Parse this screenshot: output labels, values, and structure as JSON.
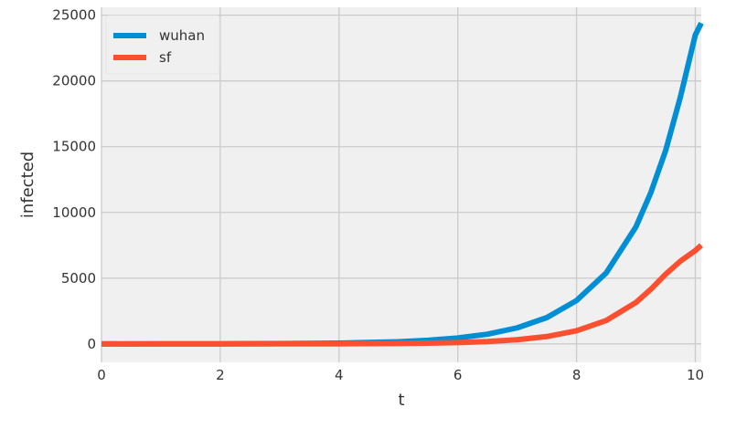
{
  "chart_data": {
    "type": "line",
    "title": "",
    "xlabel": "t",
    "ylabel": "infected",
    "xlim": [
      0,
      10.1
    ],
    "ylim": [
      -1400,
      25600
    ],
    "xticks": [
      0,
      2,
      4,
      6,
      8,
      10
    ],
    "yticks": [
      0,
      5000,
      10000,
      15000,
      20000,
      25000
    ],
    "grid": true,
    "legend_position": "top-left",
    "colors": {
      "background": "#f0f0f0",
      "grid": "#cbcbcb"
    },
    "series": [
      {
        "name": "wuhan",
        "color": "#008fd5",
        "x": [
          0,
          1,
          2,
          3,
          4,
          5,
          5.5,
          6,
          6.5,
          7,
          7.5,
          8,
          8.5,
          9,
          9.25,
          9.5,
          9.75,
          10,
          10.1
        ],
        "y": [
          1,
          3,
          8,
          22,
          60,
          165,
          275,
          450,
          740,
          1220,
          2000,
          3300,
          5400,
          8900,
          11500,
          14700,
          18800,
          23500,
          24400
        ]
      },
      {
        "name": "sf",
        "color": "#fc4f30",
        "x": [
          0,
          1,
          2,
          3,
          4,
          5,
          5.5,
          6,
          6.5,
          7,
          7.5,
          8,
          8.5,
          9,
          9.25,
          9.5,
          9.75,
          10,
          10.1
        ],
        "y": [
          0,
          0,
          1,
          3,
          9,
          30,
          55,
          100,
          180,
          320,
          560,
          1000,
          1780,
          3150,
          4150,
          5300,
          6300,
          7100,
          7500
        ]
      }
    ]
  }
}
